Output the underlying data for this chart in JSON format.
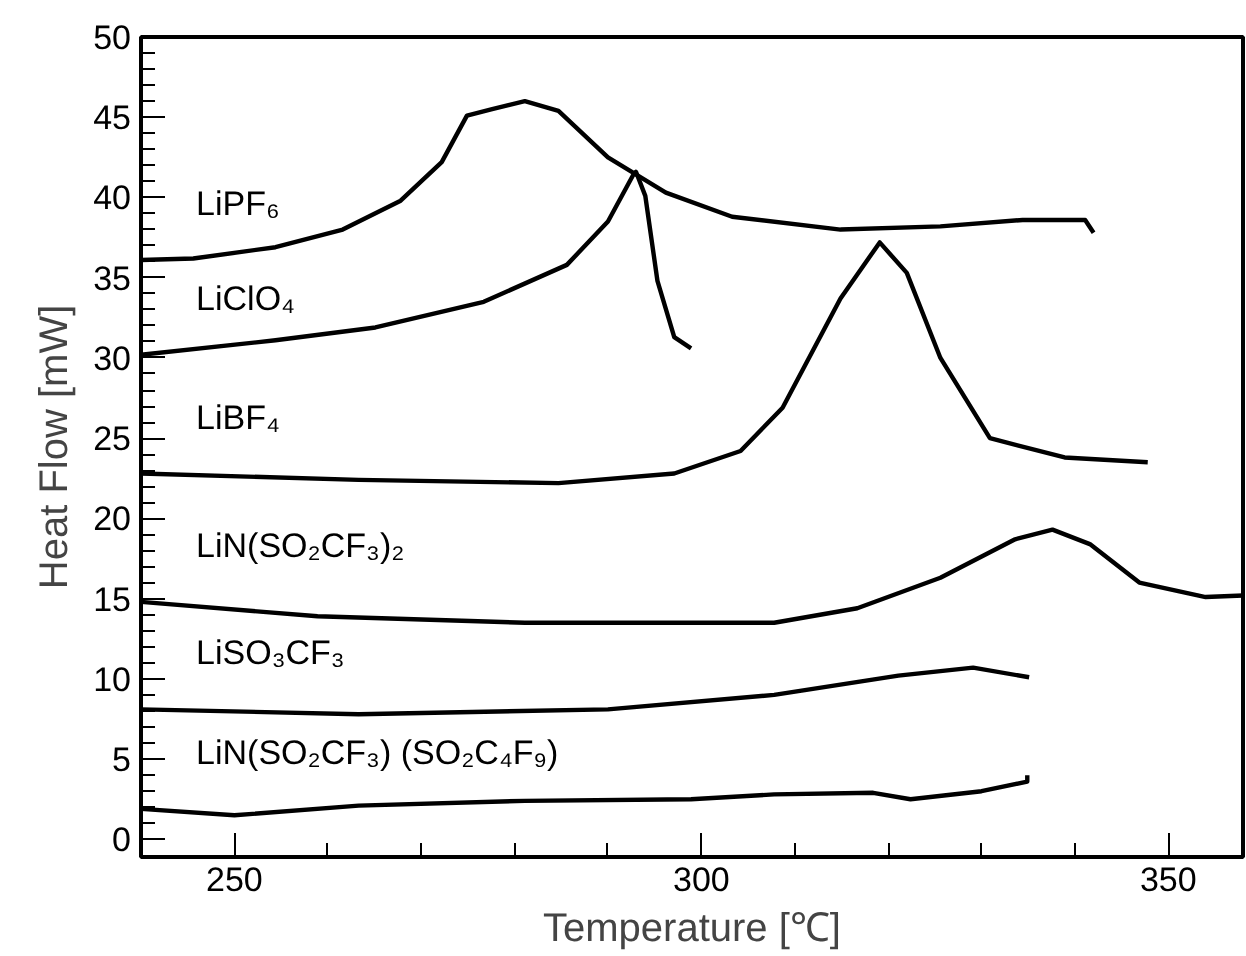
{
  "chart_data": {
    "type": "line",
    "xlabel": "Temperature [℃]",
    "ylabel": "Heat Flow [mW]",
    "xlim": [
      240,
      358
    ],
    "ylim": [
      -1.1,
      50
    ],
    "xticks": [
      250,
      300,
      350
    ],
    "yticks": [
      0,
      5,
      10,
      15,
      20,
      25,
      30,
      35,
      40,
      45,
      50
    ],
    "grid": false,
    "legend": "left",
    "marker": "none",
    "line_style": "solid",
    "series": [
      {
        "name": "LiPF₆",
        "color": "#000000",
        "x": [
          240,
          245.6,
          254.4,
          261.6,
          267.8,
          272.2,
          274.9,
          277.6,
          281.1,
          284.7,
          290,
          296.2,
          303.3,
          314.9,
          325.6,
          334.4,
          341.1,
          342
        ],
        "values": [
          36.1,
          36.2,
          36.9,
          38.0,
          39.8,
          42.2,
          45.1,
          45.5,
          46.0,
          45.4,
          42.5,
          40.3,
          38.8,
          38.0,
          38.2,
          38.6,
          38.6,
          37.8
        ]
      },
      {
        "name": "LiClO₄",
        "color": "#000000",
        "x": [
          240,
          254.4,
          265.1,
          276.7,
          285.6,
          290,
          292.7,
          293,
          294,
          295.3,
          297.1,
          298.9
        ],
        "values": [
          30.2,
          31.1,
          31.9,
          33.5,
          35.8,
          38.5,
          41.4,
          41.6,
          40.1,
          34.8,
          31.3,
          30.6
        ]
      },
      {
        "name": "LiBF₄",
        "color": "#000000",
        "x": [
          240,
          263.3,
          284.7,
          297.1,
          304.2,
          308.7,
          314.9,
          319.1,
          322,
          325.6,
          330.9,
          338.9,
          347.8
        ],
        "values": [
          22.8,
          22.4,
          22.2,
          22.8,
          24.2,
          26.9,
          33.7,
          37.2,
          35.3,
          30.0,
          25.0,
          23.8,
          23.5
        ]
      },
      {
        "name": "LiN(SO₂CF₃)₂",
        "color": "#000000",
        "x": [
          240,
          258.9,
          281.1,
          307.8,
          316.7,
          325.6,
          333.6,
          337.6,
          341.6,
          346.9,
          354,
          358
        ],
        "values": [
          14.8,
          13.9,
          13.5,
          13.5,
          14.4,
          16.3,
          18.7,
          19.3,
          18.4,
          16.0,
          15.1,
          15.2
        ]
      },
      {
        "name": "LiSO₃CF₃",
        "color": "#000000",
        "x": [
          240,
          263.3,
          290,
          307.8,
          321.1,
          329.1,
          335.1
        ],
        "values": [
          8.1,
          7.8,
          8.1,
          9.0,
          10.2,
          10.7,
          10.1
        ]
      },
      {
        "name": "LiN(SO₂CF₃) (SO₂C₄F₉)",
        "color": "#000000",
        "x": [
          240,
          250,
          263.3,
          281.1,
          298.9,
          307.8,
          318.4,
          322.4,
          330,
          334.9,
          334.9
        ],
        "values": [
          1.9,
          1.5,
          2.1,
          2.4,
          2.5,
          2.8,
          2.9,
          2.5,
          3.0,
          3.6,
          4.0
        ]
      }
    ]
  }
}
